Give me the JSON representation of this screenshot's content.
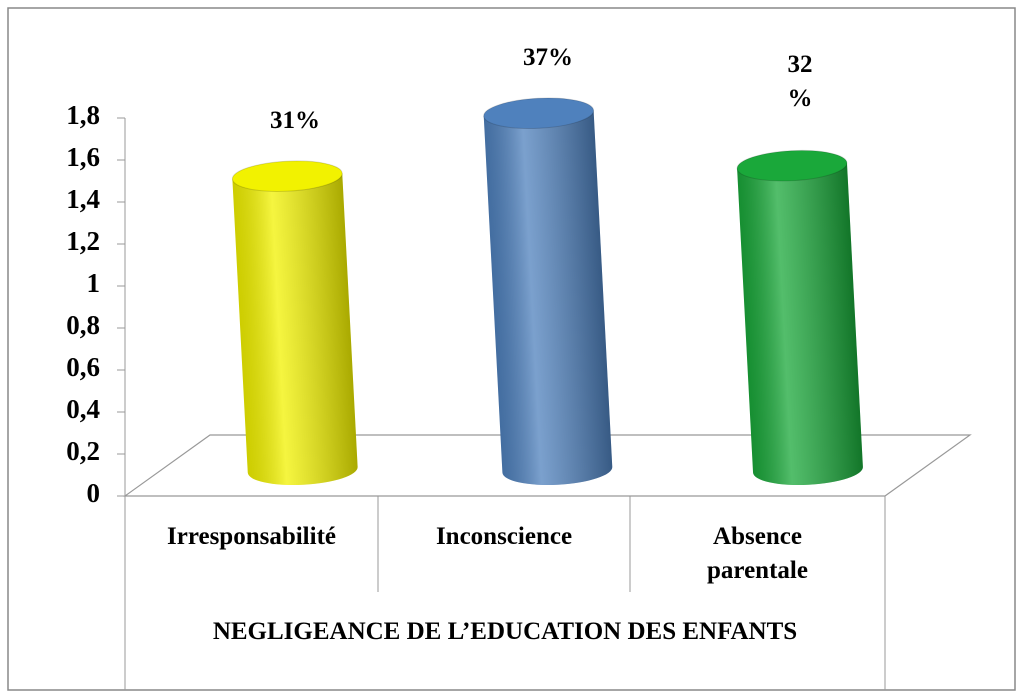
{
  "chart_data": {
    "type": "bar3d",
    "categories": [
      "Irresponsabilité",
      "Inconscience",
      "Absence parentale"
    ],
    "values": [
      1.4,
      1.7,
      1.45
    ],
    "colors": [
      "#f2f200",
      "#4f81bd",
      "#1aa83a"
    ],
    "annotations": [
      "31%",
      "37%",
      "32 %"
    ],
    "xlabel": "NEGLIGEANCE DE L’EDUCATION DES ENFANTS",
    "ylim": [
      0,
      1.8
    ],
    "yticks": [
      0,
      {
        "value": 0.2,
        "label": "0,2"
      },
      {
        "value": 0.4,
        "label": "0,4"
      },
      {
        "value": 0.6,
        "label": "0,6"
      },
      {
        "value": 0.8,
        "label": "0,8"
      },
      1,
      {
        "value": 1.2,
        "label": "1,2"
      },
      {
        "value": 1.4,
        "label": "1,4"
      },
      {
        "value": 1.6,
        "label": "1,6"
      },
      {
        "value": 1.8,
        "label": "1,8"
      }
    ]
  }
}
